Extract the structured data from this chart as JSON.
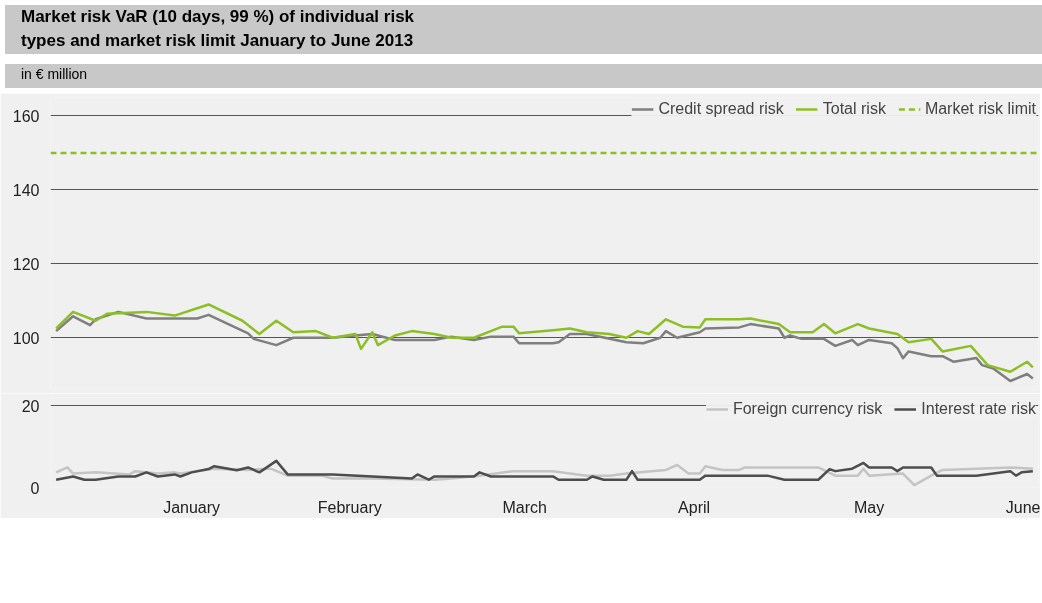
{
  "chart_data": [
    {
      "type": "line",
      "title": "Market risk VaR (10 days, 99 %) of individual risk types and market risk limit January to June 2013",
      "ylabel": "in € million",
      "xlim": [
        "2013-01-06",
        "2013-06-30"
      ],
      "ylim": [
        86,
        165
      ],
      "yticks": [
        100,
        120,
        140,
        160
      ],
      "tick_labels": "y",
      "grid": "y",
      "legend": "top right",
      "series": [
        {
          "name": "Credit spread risk",
          "color": "#7f7f7f",
          "x": [
            "2013-01-07",
            "2013-01-10",
            "2013-01-13",
            "2013-01-14",
            "2013-01-18",
            "2013-01-23",
            "2013-02-01",
            "2013-02-03",
            "2013-02-10",
            "2013-02-11",
            "2013-02-15",
            "2013-02-18",
            "2013-02-25",
            "2013-03-01",
            "2013-03-04",
            "2013-03-08",
            "2013-03-15",
            "2013-03-18",
            "2013-03-22",
            "2013-03-25",
            "2013-03-29",
            "2013-03-30",
            "2013-04-05",
            "2013-04-06",
            "2013-04-08",
            "2013-04-11",
            "2013-04-18",
            "2013-04-21",
            "2013-04-24",
            "2013-04-25",
            "2013-04-27",
            "2013-05-01",
            "2013-05-02",
            "2013-05-08",
            "2013-05-10",
            "2013-05-15",
            "2013-05-16",
            "2013-05-17",
            "2013-05-19",
            "2013-05-23",
            "2013-05-25",
            "2013-05-28",
            "2013-05-29",
            "2013-05-31",
            "2013-06-04",
            "2013-06-05",
            "2013-06-06",
            "2013-06-07",
            "2013-06-11",
            "2013-06-13",
            "2013-06-15",
            "2013-06-19",
            "2013-06-20",
            "2013-06-22",
            "2013-06-25",
            "2013-06-28",
            "2013-06-29"
          ],
          "values": [
            101.8,
            105.8,
            103.4,
            105,
            107,
            105.2,
            105.2,
            106.2,
            101.2,
            99.7,
            98,
            100,
            100,
            100.6,
            101,
            99.4,
            99.4,
            100.3,
            99.4,
            100.3,
            100.3,
            98.5,
            98.5,
            98.8,
            101,
            101,
            98.8,
            98.5,
            100,
            101.8,
            100,
            101.5,
            102.5,
            102.8,
            103.7,
            102.5,
            100,
            100.6,
            99.7,
            99.7,
            97.8,
            99.4,
            98,
            99.4,
            98.5,
            97.2,
            94.5,
            96.3,
            95,
            95,
            93.5,
            94.5,
            92.6,
            91.7,
            88.3,
            90.2,
            89
          ]
        },
        {
          "name": "Total risk",
          "color": "#8cbf26",
          "x": [
            "2013-01-07",
            "2013-01-10",
            "2013-01-14",
            "2013-01-16",
            "2013-01-23",
            "2013-01-28",
            "2013-02-03",
            "2013-02-09",
            "2013-02-12",
            "2013-02-15",
            "2013-02-18",
            "2013-02-22",
            "2013-02-25",
            "2013-03-01",
            "2013-03-02",
            "2013-03-04",
            "2013-03-05",
            "2013-03-08",
            "2013-03-11",
            "2013-03-15",
            "2013-03-18",
            "2013-03-22",
            "2013-03-25",
            "2013-03-27",
            "2013-03-29",
            "2013-03-30",
            "2013-04-05",
            "2013-04-08",
            "2013-04-11",
            "2013-04-15",
            "2013-04-18",
            "2013-04-20",
            "2013-04-22",
            "2013-04-25",
            "2013-04-28",
            "2013-05-01",
            "2013-05-02",
            "2013-05-08",
            "2013-05-10",
            "2013-05-15",
            "2013-05-17",
            "2013-05-21",
            "2013-05-23",
            "2013-05-25",
            "2013-05-29",
            "2013-05-31",
            "2013-06-05",
            "2013-06-07",
            "2013-06-11",
            "2013-06-13",
            "2013-06-15",
            "2013-06-18",
            "2013-06-21",
            "2013-06-25",
            "2013-06-28",
            "2013-06-29"
          ],
          "values": [
            102.5,
            107,
            104.6,
            106.5,
            107,
            106,
            109,
            104.6,
            101,
            104.6,
            101.5,
            101.8,
            100,
            101,
            97,
            101.5,
            98,
            100.6,
            101.8,
            101,
            100,
            100,
            101.8,
            103,
            103,
            101.2,
            102,
            102.5,
            101.5,
            101,
            100,
            101.8,
            101,
            105,
            103,
            102.8,
            105,
            105,
            105.2,
            103.7,
            101.5,
            101.5,
            103.7,
            101.2,
            103.7,
            102.5,
            101,
            98.8,
            99.7,
            96.3,
            96.9,
            97.8,
            92.6,
            90.8,
            93.5,
            92
          ]
        }
      ],
      "ref_lines": [
        {
          "axis": "y",
          "value": 150,
          "label": "Market risk limit",
          "color": "#8cbf26",
          "line_style": "dashed"
        }
      ]
    },
    {
      "type": "line",
      "xlim": [
        "2013-01-06",
        "2013-06-30"
      ],
      "xticks": [
        {
          "value": "2013-01-31",
          "label": "January"
        },
        {
          "value": "2013-02-28",
          "label": "February"
        },
        {
          "value": "2013-03-31",
          "label": "March"
        },
        {
          "value": "2013-04-30",
          "label": "April"
        },
        {
          "value": "2013-05-31",
          "label": "May"
        },
        {
          "value": "2013-06-30",
          "label": "June"
        }
      ],
      "ylim": [
        0,
        22
      ],
      "yticks": [
        0,
        20
      ],
      "grid": "y",
      "legend": "top right",
      "series": [
        {
          "name": "Foreign currency risk",
          "color": "#c4c4c4",
          "x": [
            "2013-01-07",
            "2013-01-09",
            "2013-01-10",
            "2013-01-14",
            "2013-01-20",
            "2013-01-21",
            "2013-01-25",
            "2013-01-28",
            "2013-01-29",
            "2013-02-04",
            "2013-02-10",
            "2013-02-14",
            "2013-02-17",
            "2013-02-23",
            "2013-02-25",
            "2013-03-04",
            "2013-03-15",
            "2013-03-18",
            "2013-03-23",
            "2013-03-29",
            "2013-04-05",
            "2013-04-11",
            "2013-04-15",
            "2013-04-18",
            "2013-04-25",
            "2013-04-27",
            "2013-04-29",
            "2013-05-01",
            "2013-05-02",
            "2013-05-05",
            "2013-05-08",
            "2013-05-09",
            "2013-05-22",
            "2013-05-25",
            "2013-05-29",
            "2013-05-30",
            "2013-05-31",
            "2013-06-06",
            "2013-06-08",
            "2013-06-11",
            "2013-06-13",
            "2013-06-25",
            "2013-06-29"
          ],
          "values": [
            3.7,
            4.9,
            3.4,
            3.7,
            3.2,
            4.0,
            3.4,
            3.7,
            3.4,
            4.6,
            4.3,
            4.6,
            2.9,
            2.9,
            2.2,
            2.2,
            1.9,
            2.2,
            2.9,
            4.0,
            4.0,
            2.9,
            2.9,
            3.4,
            4.3,
            5.5,
            3.4,
            3.4,
            5.2,
            4.3,
            4.3,
            4.9,
            4.9,
            2.9,
            2.9,
            4.6,
            2.9,
            3.4,
            0.6,
            2.9,
            4.3,
            4.9,
            4.6
          ]
        },
        {
          "name": "Interest rate risk",
          "color": "#4d4d4d",
          "x": [
            "2013-01-07",
            "2013-01-10",
            "2013-01-12",
            "2013-01-14",
            "2013-01-18",
            "2013-01-21",
            "2013-01-23",
            "2013-01-25",
            "2013-01-28",
            "2013-01-29",
            "2013-01-31",
            "2013-02-03",
            "2013-02-04",
            "2013-02-08",
            "2013-02-10",
            "2013-02-12",
            "2013-02-15",
            "2013-02-17",
            "2013-02-23",
            "2013-02-25",
            "2013-03-04",
            "2013-03-11",
            "2013-03-12",
            "2013-03-14",
            "2013-03-15",
            "2013-03-22",
            "2013-03-23",
            "2013-03-25",
            "2013-04-05",
            "2013-04-06",
            "2013-04-11",
            "2013-04-12",
            "2013-04-14",
            "2013-04-18",
            "2013-04-19",
            "2013-04-20",
            "2013-05-01",
            "2013-05-02",
            "2013-05-13",
            "2013-05-16",
            "2013-05-22",
            "2013-05-24",
            "2013-05-25",
            "2013-05-28",
            "2013-05-30",
            "2013-05-31",
            "2013-06-04",
            "2013-06-05",
            "2013-06-06",
            "2013-06-11",
            "2013-06-12",
            "2013-06-19",
            "2013-06-25",
            "2013-06-26",
            "2013-06-27",
            "2013-06-29"
          ],
          "values": [
            1.9,
            2.7,
            1.9,
            1.9,
            2.7,
            2.7,
            3.7,
            2.7,
            3.2,
            2.7,
            3.7,
            4.5,
            5.2,
            4.2,
            4.9,
            3.7,
            6.5,
            3.2,
            3.2,
            3.2,
            2.7,
            2.2,
            3.2,
            1.9,
            2.7,
            2.7,
            3.7,
            2.7,
            2.7,
            1.9,
            1.9,
            2.7,
            1.9,
            1.9,
            4.0,
            1.9,
            1.9,
            2.9,
            2.9,
            1.9,
            1.9,
            4.5,
            4.0,
            4.6,
            6.0,
            4.9,
            4.9,
            4.0,
            4.9,
            4.9,
            2.9,
            2.9,
            4.0,
            2.9,
            3.7,
            4.0
          ]
        }
      ]
    }
  ]
}
